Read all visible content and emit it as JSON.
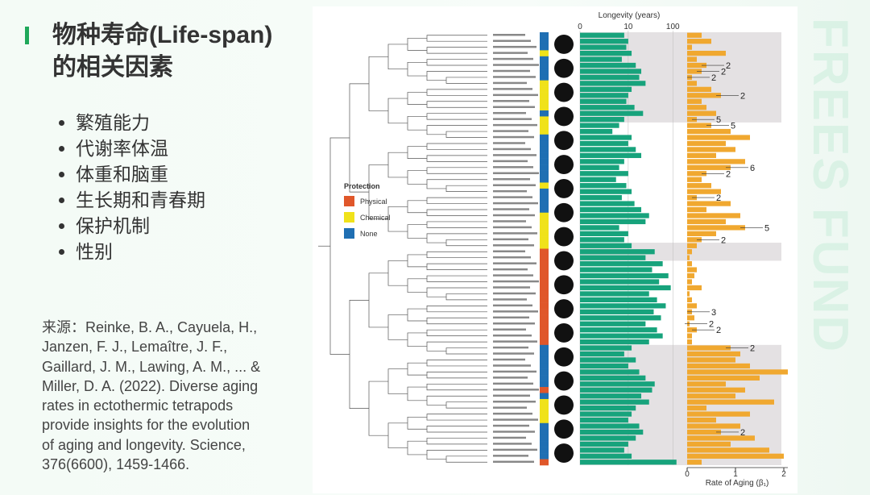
{
  "slide": {
    "title_line1": "物种寿命(Life-span)",
    "title_line2": "的相关因素",
    "bullets": [
      "繁殖能力",
      "代谢率体温",
      "体重和脑重",
      "生长期和青春期",
      "保护机制",
      "性别"
    ],
    "source": [
      "来源：Reinke, B. A., Cayuela, H.,",
      "Janzen, F. J., Lemaître, J. F.,",
      "Gaillard, J. M., Lawing, A. M., ... &",
      "Miller, D. A. (2022). Diverse aging",
      "rates in ectothermic tetrapods",
      "provide insights for the evolution",
      "of aging and longevity. Science,",
      "376(6600), 1459-1466."
    ],
    "watermark": "FREES FUND"
  },
  "chart_data": {
    "type": "bar",
    "legend_title": "Protection",
    "legend": [
      {
        "name": "Physical",
        "color": "#e0572a"
      },
      {
        "name": "Chemical",
        "color": "#f0e21a"
      },
      {
        "name": "None",
        "color": "#1f6fb3"
      }
    ],
    "protection": [
      "None",
      "None",
      "None",
      "Chemical",
      "None",
      "None",
      "None",
      "None",
      "Chemical",
      "Chemical",
      "Chemical",
      "Chemical",
      "Chemical",
      "None",
      "Chemical",
      "Chemical",
      "Chemical",
      "None",
      "None",
      "None",
      "None",
      "None",
      "None",
      "None",
      "None",
      "Chemical",
      "None",
      "None",
      "None",
      "None",
      "Chemical",
      "Chemical",
      "Chemical",
      "Chemical",
      "Chemical",
      "Chemical",
      "Physical",
      "Physical",
      "Physical",
      "Physical",
      "Physical",
      "Physical",
      "Physical",
      "Physical",
      "Physical",
      "Physical",
      "Physical",
      "Physical",
      "Physical",
      "Physical",
      "Physical",
      "Physical",
      "None",
      "None",
      "None",
      "None",
      "None",
      "None",
      "None",
      "Physical",
      "None",
      "Chemical",
      "Chemical",
      "Chemical",
      "Chemical",
      "None",
      "None",
      "None",
      "None",
      "None",
      "None",
      "Physical"
    ],
    "longevity": {
      "title": "Longevity (years)",
      "color": "#17a37c",
      "log1p": true,
      "xlim": [
        0,
        160
      ],
      "xticks": [
        0,
        10,
        100
      ],
      "values": [
        8,
        10,
        9,
        12,
        7,
        15,
        20,
        18,
        25,
        12,
        10,
        9,
        14,
        22,
        8,
        6,
        4,
        12,
        10,
        15,
        20,
        8,
        6,
        10,
        5,
        9,
        12,
        7,
        14,
        20,
        30,
        25,
        6,
        10,
        8,
        12,
        40,
        25,
        60,
        35,
        80,
        50,
        90,
        30,
        45,
        70,
        38,
        55,
        25,
        45,
        60,
        30,
        12,
        8,
        15,
        10,
        18,
        25,
        40,
        35,
        20,
        30,
        15,
        12,
        10,
        18,
        22,
        15,
        10,
        8,
        12,
        120
      ]
    },
    "aging": {
      "title": "Rate of Aging (β₁)",
      "color": "#f0a830",
      "xlim": [
        0,
        2.15
      ],
      "xticks": [
        0,
        1,
        2
      ],
      "values": [
        0.3,
        0.5,
        0.1,
        0.8,
        0.2,
        0.4,
        0.3,
        0.1,
        0.2,
        0.5,
        0.7,
        0.3,
        0.4,
        0.6,
        0.2,
        0.5,
        0.9,
        1.3,
        0.8,
        1.0,
        0.6,
        1.2,
        0.9,
        0.4,
        0.3,
        0.5,
        0.7,
        0.2,
        0.9,
        0.4,
        1.1,
        0.8,
        1.2,
        0.6,
        0.3,
        0.2,
        0.1,
        0.05,
        0.1,
        0.2,
        0.15,
        0.1,
        0.3,
        0.05,
        0.1,
        0.2,
        0.1,
        0.15,
        0.05,
        0.2,
        0.1,
        0.1,
        0.9,
        1.1,
        1.0,
        1.3,
        2.1,
        1.5,
        0.8,
        1.2,
        1.0,
        1.8,
        0.4,
        1.3,
        0.6,
        1.1,
        0.7,
        1.4,
        0.9,
        1.7,
        2.0,
        0.3
      ]
    },
    "annotations": [
      {
        "row": 5,
        "text": "2"
      },
      {
        "row": 6,
        "text": "2"
      },
      {
        "row": 7,
        "text": "2"
      },
      {
        "row": 10,
        "text": "2"
      },
      {
        "row": 14,
        "text": "5"
      },
      {
        "row": 15,
        "text": "5"
      },
      {
        "row": 22,
        "text": "6"
      },
      {
        "row": 23,
        "text": "2"
      },
      {
        "row": 27,
        "text": "2"
      },
      {
        "row": 32,
        "text": "5"
      },
      {
        "row": 34,
        "text": "2"
      },
      {
        "row": 46,
        "text": "3"
      },
      {
        "row": 48,
        "text": "2"
      },
      {
        "row": 49,
        "text": "2"
      },
      {
        "row": 52,
        "text": "2"
      },
      {
        "row": 66,
        "text": "2"
      }
    ]
  }
}
